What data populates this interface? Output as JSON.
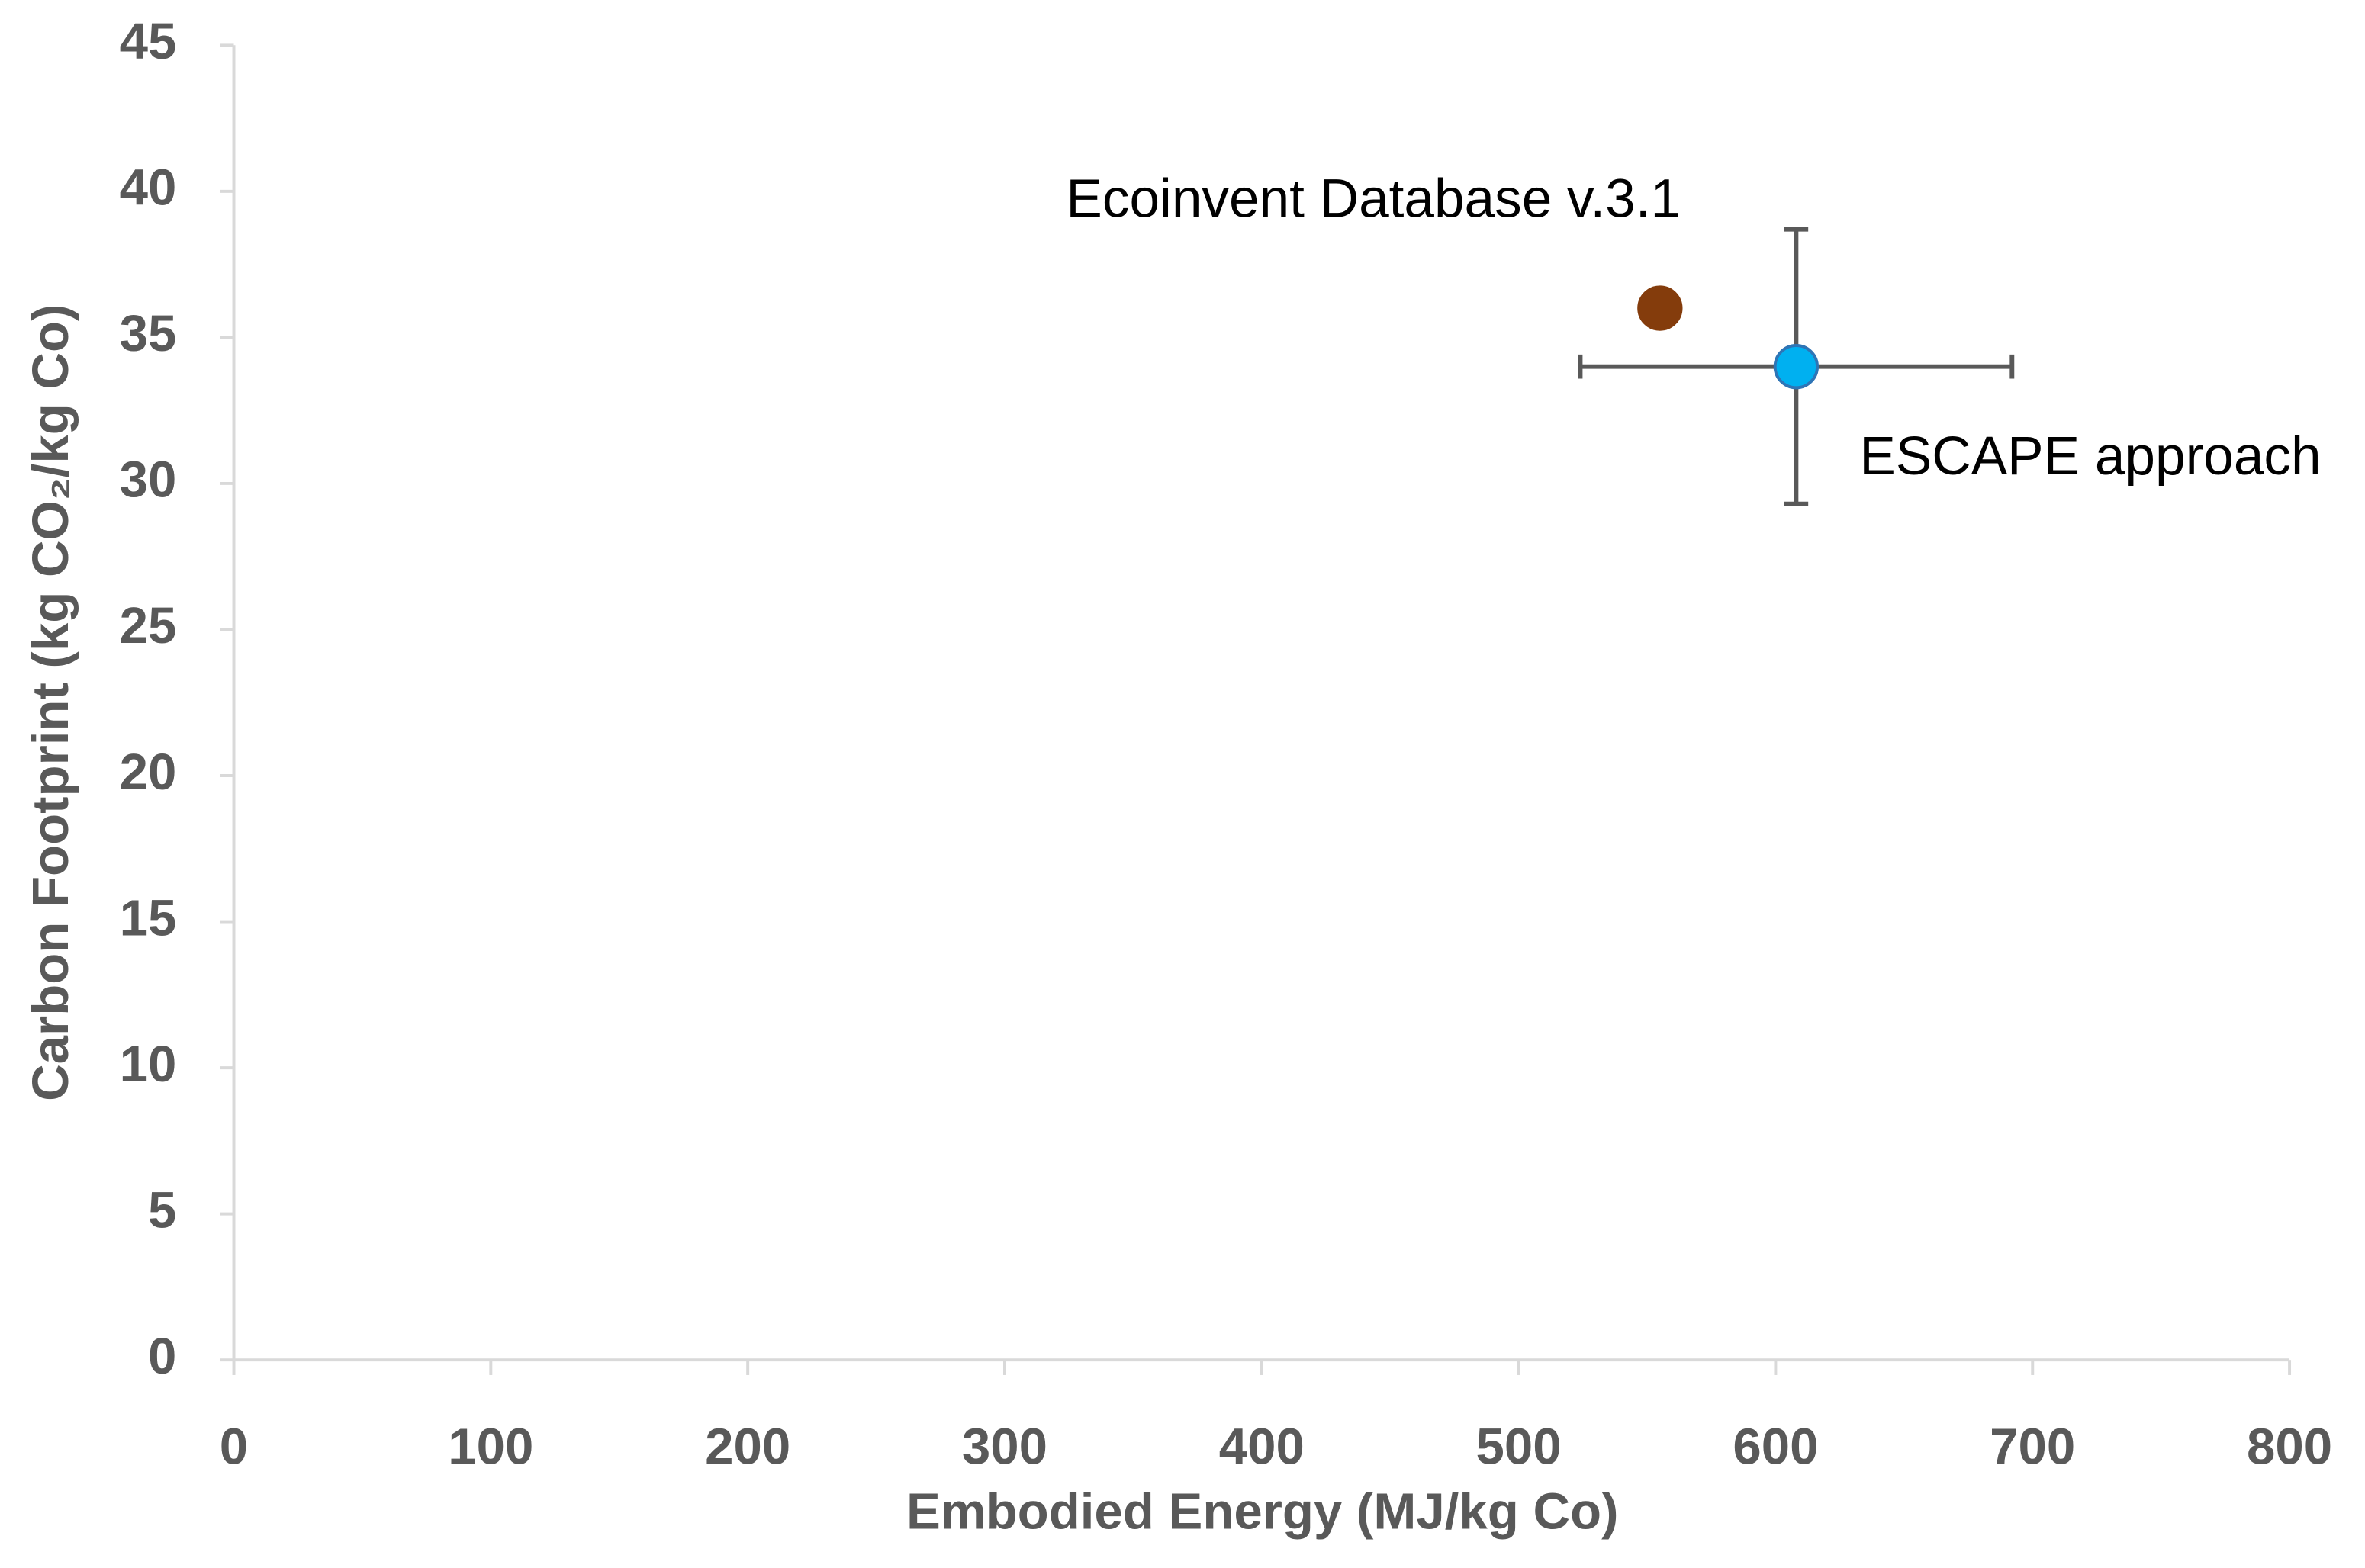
{
  "chart_data": {
    "type": "scatter",
    "x_label": "Embodied Energy (MJ/kg Co)",
    "y_label": "Carbon Footprint (kg CO₂/kg Co)",
    "series": [
      {
        "name": "Ecoinvent Database v.3.1",
        "color": "#843c0c",
        "x": [
          555
        ],
        "values": [
          36
        ]
      },
      {
        "name": "ESCAPE approach",
        "color": "#00b0f0",
        "x": [
          608
        ],
        "values": [
          34
        ],
        "xerr": [
          84
        ],
        "yerr": [
          4.7
        ]
      }
    ],
    "xlim": [
      0,
      800
    ],
    "xticks": [
      0,
      100,
      200,
      300,
      400,
      500,
      600,
      700,
      800
    ],
    "ylim": [
      0,
      45
    ],
    "yticks": [
      0,
      5,
      10,
      15,
      20,
      25,
      30,
      35,
      40,
      45
    ]
  }
}
